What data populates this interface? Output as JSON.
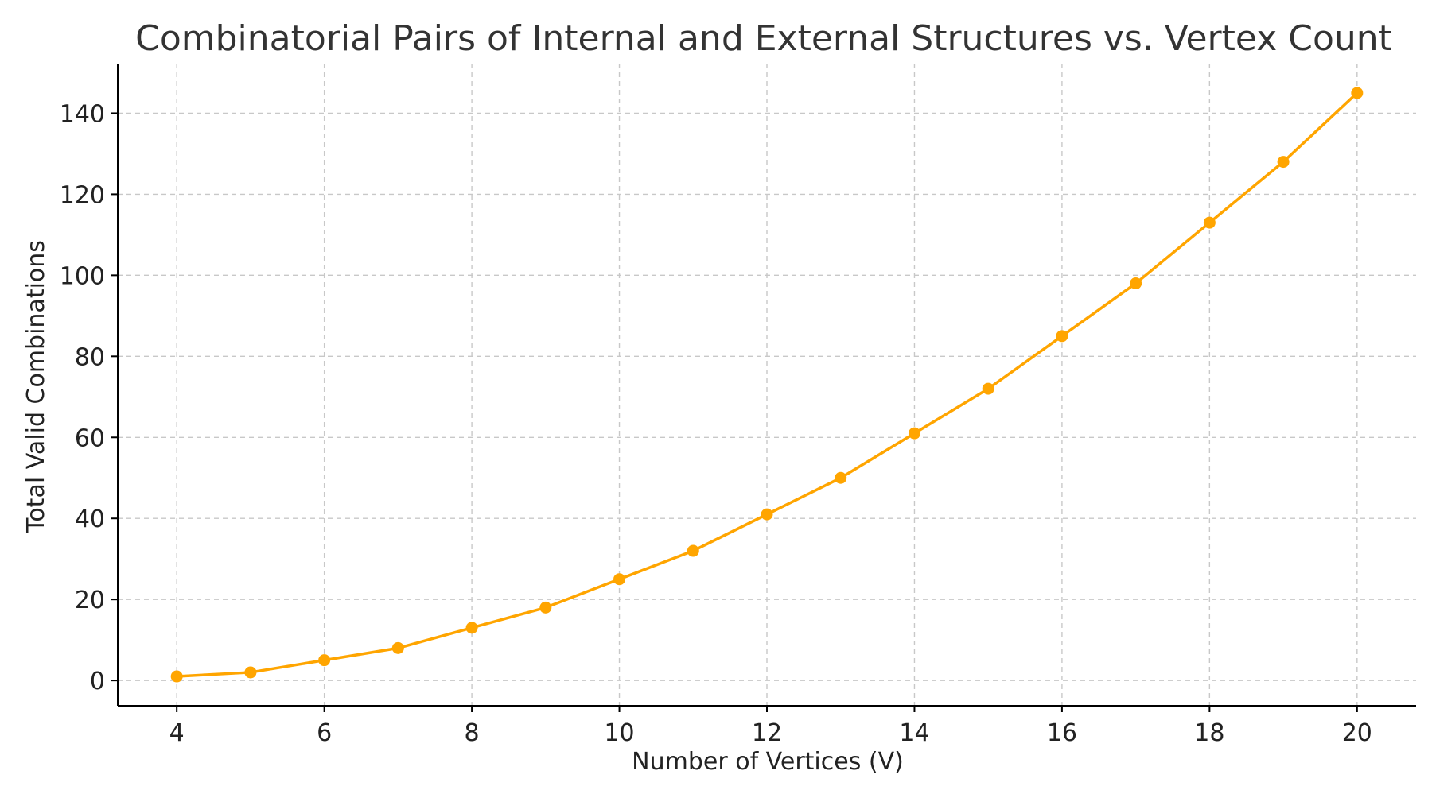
{
  "chart_data": {
    "type": "line",
    "title": "Combinatorial Pairs of Internal and External Structures vs. Vertex Count",
    "xlabel": "Number of Vertices (V)",
    "ylabel": "Total Valid Combinations",
    "x": [
      4,
      5,
      6,
      7,
      8,
      9,
      10,
      11,
      12,
      13,
      14,
      15,
      16,
      17,
      18,
      19,
      20
    ],
    "series": [
      {
        "values": [
          1,
          2,
          5,
          8,
          13,
          18,
          25,
          32,
          41,
          50,
          61,
          72,
          85,
          98,
          113,
          128,
          145
        ],
        "color": "#FFA500",
        "marker": "circle"
      }
    ],
    "xlim": [
      3.2,
      20.8
    ],
    "ylim": [
      -6.25,
      152.25
    ],
    "xticks": [
      4,
      6,
      8,
      10,
      12,
      14,
      16,
      18,
      20
    ],
    "yticks": [
      0,
      20,
      40,
      60,
      80,
      100,
      120,
      140
    ],
    "grid": true,
    "grid_style": "dashed",
    "legend": "none",
    "spines": "left-bottom"
  }
}
